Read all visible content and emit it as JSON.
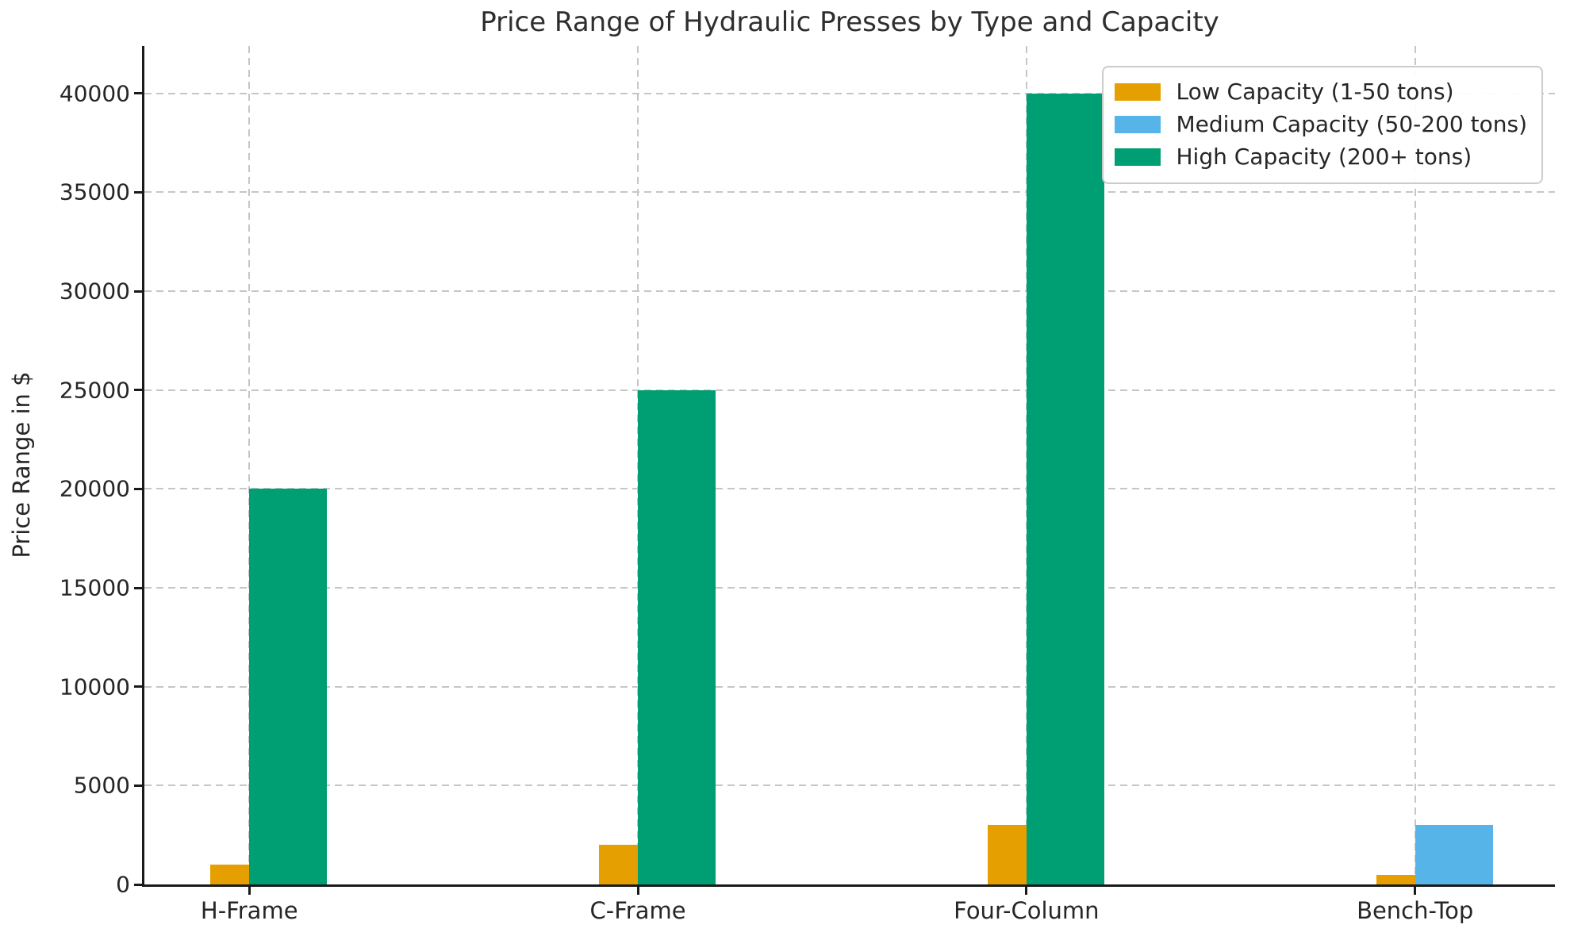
{
  "chart_data": {
    "type": "bar",
    "title": "Price Range of Hydraulic Presses by Type and Capacity",
    "xlabel": "",
    "ylabel": "Price Range in $",
    "categories": [
      "H-Frame",
      "C-Frame",
      "Four-Column",
      "Bench-Top"
    ],
    "series": [
      {
        "name": "Low Capacity (1-50 tons)",
        "color": "#E69F00",
        "offset": -0.1,
        "bar_width": 0.1,
        "values": [
          1000,
          2000,
          3000,
          500
        ]
      },
      {
        "name": "Medium Capacity (50-200 tons)",
        "color": "#56B4E9",
        "offset": 0.0,
        "bar_width": 0.2,
        "values": [
          0,
          0,
          0,
          3000
        ]
      },
      {
        "name": "High Capacity (200+ tons)",
        "color": "#009E73",
        "offset": 0.0,
        "bar_width": 0.2,
        "values": [
          20000,
          25000,
          40000,
          0
        ]
      }
    ],
    "yticks": [
      0,
      5000,
      10000,
      15000,
      20000,
      25000,
      30000,
      35000,
      40000
    ],
    "ylim": [
      0,
      42400
    ],
    "xlim": [
      -0.27,
      3.36
    ],
    "grid": true,
    "grid_style": "dashed",
    "legend_position": "upper right",
    "colors": {
      "spine": "#1a1a1a",
      "grid": "#c6c6c6",
      "text": "#262626",
      "background": "#ffffff"
    }
  }
}
